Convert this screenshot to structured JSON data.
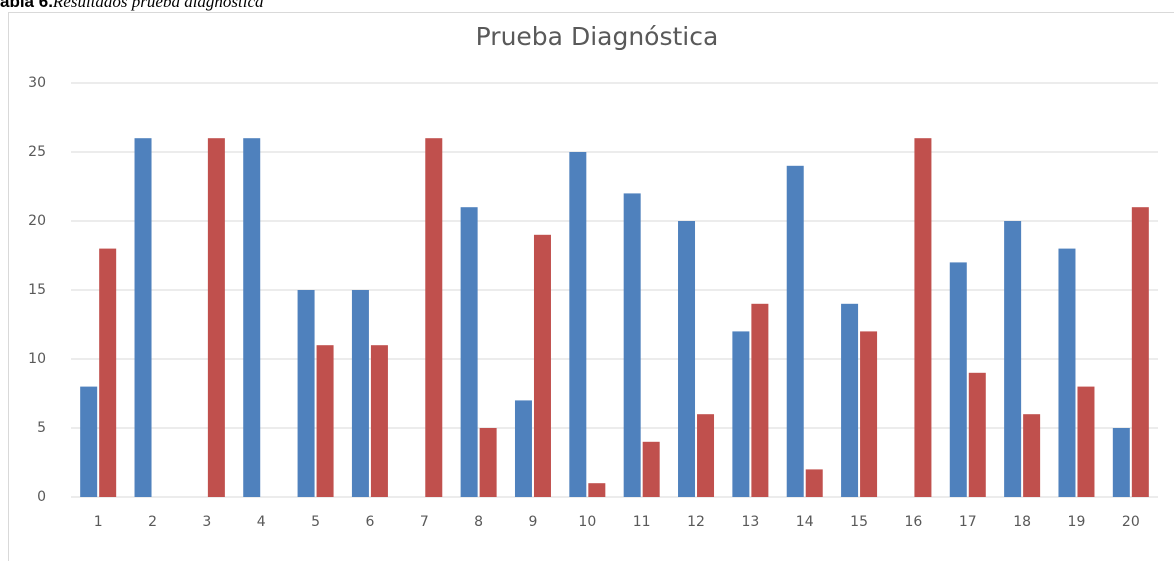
{
  "caption": {
    "label": "abla 6.",
    "text": "Resultados prueba diagnóstica"
  },
  "chart_data": {
    "type": "bar",
    "title": "Prueba Diagnóstica",
    "categories": [
      "1",
      "2",
      "3",
      "4",
      "5",
      "6",
      "7",
      "8",
      "9",
      "10",
      "11",
      "12",
      "13",
      "14",
      "15",
      "16",
      "17",
      "18",
      "19",
      "20"
    ],
    "series": [
      {
        "color": "#4f81bd",
        "values": [
          8,
          26,
          0,
          26,
          15,
          15,
          0,
          21,
          7,
          25,
          22,
          20,
          12,
          24,
          14,
          0,
          17,
          20,
          18,
          5
        ]
      },
      {
        "color": "#c0504d",
        "values": [
          18,
          0,
          26,
          0,
          11,
          11,
          26,
          5,
          19,
          1,
          4,
          6,
          14,
          2,
          12,
          26,
          9,
          6,
          8,
          21
        ]
      }
    ],
    "ylim": [
      0,
      30
    ],
    "yticks": [
      0,
      5,
      10,
      15,
      20,
      25,
      30
    ],
    "grid": true
  }
}
